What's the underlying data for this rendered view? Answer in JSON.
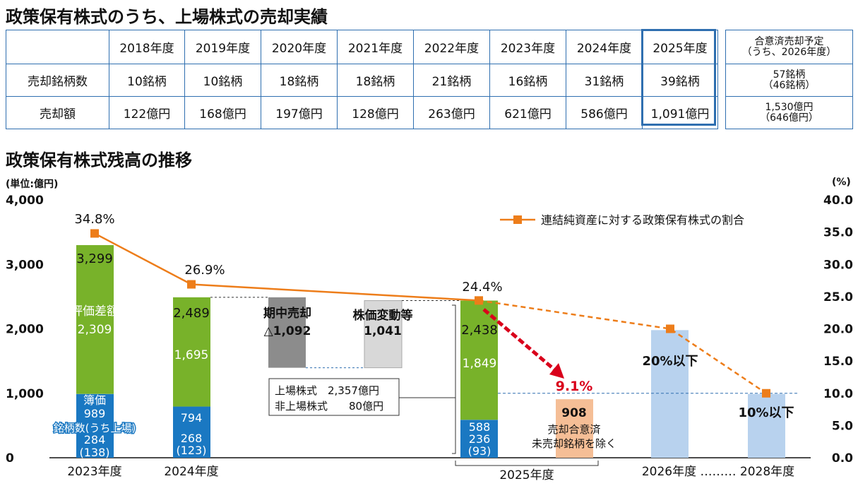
{
  "title1": "政策保有株式のうち、上場株式の売却実績",
  "title2": "政策保有株式残高の推移",
  "sales_table": {
    "years": [
      "2018年度",
      "2019年度",
      "2020年度",
      "2021年度",
      "2022年度",
      "2023年度",
      "2024年度",
      "2025年度"
    ],
    "rows": [
      {
        "label": "売却銘柄数",
        "values": [
          "10銘柄",
          "10銘柄",
          "18銘柄",
          "18銘柄",
          "21銘柄",
          "16銘柄",
          "31銘柄",
          "39銘柄"
        ]
      },
      {
        "label": "売却額",
        "values": [
          "122億円",
          "168億円",
          "197億円",
          "128億円",
          "263億円",
          "621億円",
          "586億円",
          "1,091億円"
        ]
      }
    ],
    "plan": {
      "header_line1": "合意済売却予定",
      "header_line2": "（うち、2026年度）",
      "count_line1": "57銘柄",
      "count_line2": "（46銘柄）",
      "amount_line1": "1,530億円",
      "amount_line2": "（646億円）"
    },
    "highlight_color": "#2f6fb0"
  },
  "chart_data": {
    "type": "bar",
    "unit_left": "(単位:億円)",
    "unit_right": "(%)",
    "left_ticks": [
      "4,000",
      "3,000",
      "2,000",
      "1,000",
      "0"
    ],
    "right_ticks": [
      "40.0",
      "35.0",
      "30.0",
      "25.0",
      "20.0",
      "15.0",
      "10.0",
      "5.0",
      "0.0"
    ],
    "ylim_left": [
      0,
      4000
    ],
    "ylim_right": [
      0,
      40
    ],
    "x_labels": {
      "y2023": "2023年度",
      "y2024": "2024年度",
      "y2025": "2025年度",
      "y2026": "2026年度 ……… 2028年度"
    },
    "bars": {
      "y2023": {
        "total_label": "3,299",
        "total": 3299,
        "book": 989,
        "eval": 2309,
        "count": "284",
        "count_listed": "(138)"
      },
      "y2024": {
        "total_label": "2,489",
        "total": 2489,
        "book": 794,
        "eval": 1695,
        "count": "268",
        "count_listed": "(123)"
      },
      "y2025": {
        "total_label": "2,438",
        "total": 2438,
        "book": 588,
        "eval": 1849,
        "count": "236",
        "count_listed": "(93)"
      }
    },
    "labels": {
      "book_label": "簿価",
      "book_value_2023": "989",
      "eval_label": "評価差額",
      "eval_value_2023": "2,309",
      "eval_value_2024": "1,695",
      "eval_value_2025": "1,849",
      "book_value_2024": "794",
      "book_value_2025": "588",
      "count_label": "銘柄数(うち上場)"
    },
    "waterfall": {
      "sale_label": "期中売却",
      "sale_value": "△1,092",
      "sale_range": [
        1396,
        2489
      ],
      "price_label": "株価変動等",
      "price_value": "1,041",
      "price_range": [
        1396,
        2438
      ]
    },
    "breakdown": {
      "listed": "上場株式　2,357億円",
      "unlisted": "非上場株式　　80億円"
    },
    "after_sale": {
      "value": 908,
      "label": "908",
      "note1": "売却合意済",
      "note2": "未売却銘柄を除く",
      "pct": "9.1%"
    },
    "targets": [
      {
        "name": "2026",
        "value": 1980,
        "label": "20%以下"
      },
      {
        "name": "2028",
        "value": 990,
        "label": "10%以下"
      }
    ],
    "ratio_series": {
      "name": "連結純資産に対する政策保有株式の割合",
      "points": [
        {
          "x": "2023年度",
          "y": 34.8,
          "label": "34.8%"
        },
        {
          "x": "2024年度",
          "y": 26.9,
          "label": "26.9%"
        },
        {
          "x": "2025年度",
          "y": 24.4,
          "label": "24.4%"
        },
        {
          "x": "2026年度",
          "y": 20.0
        },
        {
          "x": "2028年度",
          "y": 10.0
        }
      ]
    },
    "colors": {
      "book": "#1a78c2",
      "eval": "#78b22a",
      "gray": "#8c8c8c",
      "lightgray": "#d8d8d8",
      "target": "#b8d2ee",
      "after": "#f5be96",
      "line": "#ed7d1a",
      "red": "#d9001b",
      "dashed": "#2f6fb0"
    }
  }
}
